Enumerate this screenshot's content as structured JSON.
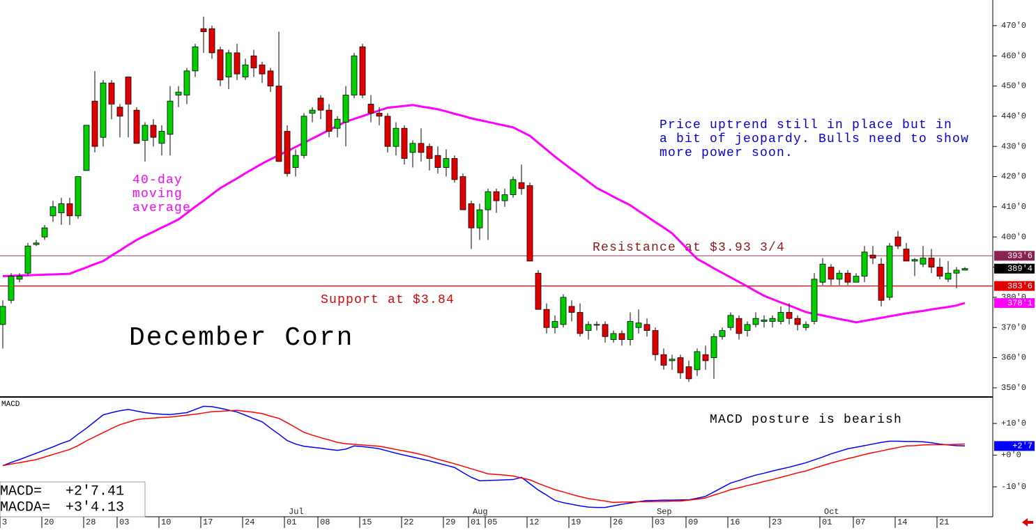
{
  "chart_data": [
    {
      "type": "candlestick",
      "title": "December Corn",
      "categories": [
        "3",
        null,
        null,
        null,
        null,
        "20",
        null,
        null,
        null,
        null,
        "28",
        null,
        null,
        null,
        "03",
        null,
        null,
        null,
        null,
        "10",
        null,
        null,
        null,
        null,
        "17",
        null,
        null,
        null,
        null,
        "24",
        null,
        null,
        null,
        null,
        "01",
        null,
        null,
        null,
        "08",
        null,
        null,
        null,
        null,
        "15",
        null,
        null,
        null,
        null,
        "22",
        null,
        null,
        null,
        null,
        "29",
        null,
        null,
        "01",
        null,
        "05",
        null,
        null,
        null,
        null,
        "12",
        null,
        null,
        null,
        null,
        "19",
        null,
        null,
        null,
        null,
        "26",
        null,
        null,
        null,
        null,
        "03",
        null,
        null,
        null,
        "09",
        null,
        null,
        null,
        null,
        "16",
        null,
        null,
        null,
        null,
        "23",
        null,
        null,
        null,
        null,
        null,
        "01",
        null,
        null,
        null,
        "07",
        null,
        null,
        null,
        null,
        "14",
        null,
        null,
        null,
        null,
        "21",
        null,
        null,
        null
      ],
      "months": [
        null,
        null,
        null,
        null,
        null,
        null,
        null,
        null,
        null,
        null,
        null,
        null,
        null,
        null,
        null,
        null,
        null,
        null,
        null,
        null,
        null,
        null,
        null,
        null,
        null,
        null,
        null,
        null,
        null,
        null,
        null,
        null,
        null,
        null,
        "Jul",
        null,
        null,
        null,
        null,
        null,
        null,
        null,
        null,
        null,
        null,
        null,
        null,
        null,
        null,
        null,
        null,
        null,
        null,
        null,
        null,
        null,
        "Aug",
        null,
        null,
        null,
        null,
        null,
        null,
        null,
        null,
        null,
        null,
        null,
        null,
        null,
        null,
        null,
        null,
        null,
        null,
        null,
        null,
        null,
        "Sep",
        null,
        null,
        null,
        null,
        null,
        null,
        null,
        null,
        null,
        null,
        null,
        null,
        null,
        null,
        null,
        null,
        null,
        null,
        null,
        "Oct",
        null,
        null,
        null,
        null,
        null,
        null,
        null,
        null,
        null,
        null,
        null,
        null,
        null,
        null,
        null,
        null,
        null
      ],
      "open": [
        371,
        379,
        386,
        388,
        397.5,
        400,
        407,
        408,
        411,
        407,
        422,
        445,
        433,
        451,
        443,
        453,
        442,
        432,
        437,
        431,
        434,
        447,
        447,
        455,
        469,
        469,
        462,
        453,
        461,
        453,
        460,
        457,
        455,
        450,
        435,
        423,
        427,
        441,
        446,
        442,
        436,
        438,
        447,
        463,
        444,
        441,
        440,
        430,
        436,
        428,
        431,
        430,
        427,
        423,
        426,
        420,
        411,
        403,
        409,
        415,
        412,
        414,
        418,
        417,
        388,
        376,
        370,
        371,
        377,
        375,
        369,
        371,
        371,
        366,
        368,
        366,
        370,
        371,
        369,
        361,
        359,
        360,
        357,
        356,
        361,
        360,
        367,
        370,
        373,
        369,
        371,
        372,
        372,
        372,
        375,
        373,
        370,
        372,
        385,
        390,
        386,
        388,
        385,
        387,
        394,
        391,
        380,
        400,
        396,
        392,
        391,
        393,
        390,
        386,
        388,
        389
      ],
      "high": [
        379,
        388,
        388,
        398,
        399,
        404,
        412,
        413,
        413,
        420,
        437,
        455,
        452,
        452,
        444,
        453,
        443,
        438,
        439,
        437,
        450,
        450,
        456,
        464,
        473,
        470,
        463,
        462,
        464,
        459,
        462,
        458,
        456,
        468,
        437,
        429,
        441,
        443,
        447,
        444,
        440,
        450,
        461,
        464,
        447,
        443,
        441,
        438,
        437,
        432,
        436,
        431,
        430,
        429,
        427,
        421,
        412,
        411,
        416,
        416,
        416,
        420,
        424,
        418,
        389,
        378,
        374,
        381,
        379,
        378,
        372,
        372,
        372,
        369,
        369,
        375,
        376,
        373,
        370,
        363,
        361,
        361,
        359,
        363,
        364,
        368,
        370,
        375,
        374,
        372,
        375,
        374,
        374,
        377,
        378,
        374,
        372,
        388,
        393,
        391,
        389,
        389,
        388,
        397,
        397,
        393,
        398,
        402,
        398,
        393,
        397,
        396,
        393,
        392,
        390,
        390
      ],
      "low": [
        363,
        378,
        385,
        387,
        397,
        399,
        405,
        404,
        404,
        406,
        422,
        428,
        430,
        439,
        433,
        433,
        431,
        425,
        430,
        427,
        427,
        443,
        444,
        453,
        461,
        459,
        450,
        449,
        452,
        452,
        453,
        451,
        448,
        425,
        420,
        420,
        426,
        438,
        439,
        433,
        433,
        430,
        446,
        446,
        438,
        437,
        428,
        427,
        424,
        423,
        425,
        422,
        421,
        420,
        418,
        409,
        396,
        399,
        399,
        408,
        410,
        413,
        414,
        392,
        376,
        368,
        368,
        370,
        372,
        367,
        366,
        369,
        365,
        365,
        364,
        364,
        368,
        367,
        359,
        356,
        356,
        353,
        352,
        354,
        356,
        353,
        366,
        369,
        366,
        367,
        370,
        370,
        370,
        371,
        371,
        369,
        369,
        371,
        384,
        384,
        384,
        384,
        385,
        385,
        391,
        377,
        379,
        396,
        392,
        387,
        390,
        388,
        386,
        385,
        383,
        389
      ],
      "close": [
        377,
        387,
        387,
        397,
        398,
        403,
        410,
        411,
        407,
        420,
        437,
        430,
        451,
        444,
        440,
        444,
        431,
        437,
        433,
        435,
        445,
        448,
        455,
        463,
        468,
        461,
        452,
        461,
        454,
        457,
        456,
        454,
        450,
        425,
        421,
        427,
        440,
        442,
        442,
        435,
        439,
        447,
        460,
        447,
        441,
        440,
        430,
        436,
        426,
        431,
        428,
        426,
        423,
        426,
        419,
        409,
        403,
        409,
        415,
        412,
        414,
        419,
        416,
        392,
        376,
        370,
        372,
        380,
        375,
        368,
        371,
        371,
        367,
        368,
        366,
        372,
        371.5,
        369,
        361,
        357.5,
        359.5,
        355,
        353,
        362,
        359,
        367,
        369,
        374,
        368,
        371,
        373,
        372.5,
        373,
        375,
        373,
        371,
        371,
        386,
        391,
        386,
        388,
        385,
        387,
        395,
        393,
        379,
        397,
        397,
        392,
        392.5,
        393,
        390,
        387,
        388,
        389,
        389.5
      ],
      "up_color": "#00d000",
      "down_color": "#e00000",
      "moving_average": {
        "label_lines": [
          "40-day",
          "moving",
          "average"
        ],
        "color": "#ff00ff",
        "values": [
          387.0,
          387.1,
          387.2,
          387.3,
          387.4,
          387.5,
          387.6,
          387.7,
          387.8,
          388.9,
          389.9,
          391.0,
          392.0,
          393.8,
          395.5,
          397.3,
          399.0,
          400.4,
          401.7,
          403.1,
          404.4,
          405.8,
          407.9,
          410.0,
          412.0,
          414.1,
          416.2,
          417.8,
          419.4,
          421.1,
          422.7,
          424.3,
          425.7,
          427.1,
          428.4,
          429.8,
          431.2,
          432.6,
          434.0,
          435.4,
          436.8,
          438.2,
          439.1,
          440.0,
          441.0,
          441.9,
          442.8,
          443.1,
          443.4,
          443.7,
          443.2,
          442.8,
          442.3,
          441.6,
          440.8,
          440.1,
          439.3,
          438.7,
          438.1,
          437.5,
          436.9,
          436.3,
          434.9,
          433.5,
          431.2,
          428.9,
          426.6,
          424.5,
          422.4,
          420.4,
          418.3,
          416.2,
          414.8,
          413.3,
          411.9,
          410.5,
          408.6,
          406.8,
          404.9,
          403.1,
          401.2,
          398.4,
          395.5,
          392.7,
          391.2,
          389.6,
          388.1,
          386.6,
          385.1,
          383.6,
          382.0,
          380.5,
          379.4,
          378.3,
          377.3,
          376.2,
          375.1,
          374.5,
          374.0,
          373.4,
          372.8,
          372.3,
          371.7,
          372.2,
          372.7,
          373.2,
          373.7,
          374.2,
          374.7,
          375.1,
          375.5,
          376.0,
          376.4,
          376.8,
          377.3,
          378.1
        ],
        "tag": {
          "value": 378.1,
          "label": "378'1"
        }
      },
      "levels": [
        {
          "label": "Resistance at $3.93 3/4",
          "value": 393.75,
          "tag": "393'6",
          "color": "#9b4f7a",
          "text_color": "#8b1a1a",
          "tag_color": "#8b2252"
        },
        {
          "label": "Support at $3.84",
          "value": 383.75,
          "tag": "383'6",
          "color": "#e00000",
          "text_color": "#e00000",
          "tag_color": "#e00000"
        }
      ],
      "last_tag": {
        "value": 389.5,
        "label": "389'4"
      },
      "note_lines": [
        "Price uptrend still in place but in",
        "a bit of jeopardy. Bulls need to show",
        "more power soon."
      ],
      "ylim": [
        347.9,
        478.5
      ],
      "yticks": [
        {
          "value": 350,
          "label": "350'0"
        },
        {
          "value": 360,
          "label": "360'0"
        },
        {
          "value": 370,
          "label": "370'0"
        },
        {
          "value": 380,
          "label": "380'0"
        },
        {
          "value": 390,
          "label": "390'0"
        },
        {
          "value": 400,
          "label": "400'0"
        },
        {
          "value": 410,
          "label": "410'0"
        },
        {
          "value": 420,
          "label": "420'0"
        },
        {
          "value": 430,
          "label": "430'0"
        },
        {
          "value": 440,
          "label": "440'0"
        },
        {
          "value": 450,
          "label": "450'0"
        },
        {
          "value": 460,
          "label": "460'0"
        },
        {
          "value": 470,
          "label": "470'0"
        }
      ]
    },
    {
      "type": "line",
      "title": "MACD",
      "annotation": "MACD posture is bearish",
      "series": [
        {
          "name": "MACD=",
          "value_label": "+2'7.41",
          "color": "#0000ff",
          "values": [
            -3.3,
            -2.3,
            -1.4,
            -0.4,
            0.6,
            1.6,
            2.6,
            3.7,
            4.6,
            6.6,
            8.5,
            10.6,
            12.7,
            13.4,
            14.0,
            14.4,
            13.9,
            13.4,
            13.1,
            12.9,
            12.8,
            13.1,
            13.4,
            14.4,
            15.4,
            15.3,
            14.8,
            14.2,
            13.6,
            12.6,
            11.5,
            10.5,
            8.5,
            6.6,
            4.6,
            3.5,
            2.8,
            2.5,
            2.2,
            1.8,
            1.5,
            1.9,
            2.9,
            2.7,
            2.4,
            2.0,
            1.3,
            0.6,
            0,
            -0.6,
            -1.2,
            -1.8,
            -2.5,
            -3.2,
            -3.9,
            -5.5,
            -7.0,
            -8.1,
            -8.0,
            -7.9,
            -7.8,
            -7.7,
            -7.0,
            -9.0,
            -11,
            -12.6,
            -14.3,
            -15.0,
            -15.5,
            -16.0,
            -16.4,
            -16.5,
            -16.5,
            -16.0,
            -15.5,
            -15.1,
            -14.7,
            -14.3,
            -14.3,
            -14.2,
            -14.2,
            -14.1,
            -14.1,
            -13.6,
            -13.0,
            -11.6,
            -10.2,
            -8.8,
            -8.0,
            -7.1,
            -6.3,
            -5.7,
            -5.0,
            -4.4,
            -3.8,
            -3.1,
            -2.4,
            -1.5,
            -0.6,
            0.4,
            1.2,
            2.0,
            2.5,
            3.0,
            3.5,
            4.0,
            4.4,
            4.4,
            4.3,
            4.3,
            4.2,
            3.9,
            3.5,
            3.2,
            3.0,
            2.9
          ]
        },
        {
          "name": "MACDA=",
          "value_label": "+3'4.13",
          "color": "#ff0000",
          "values": [
            -3.3,
            -2.8,
            -2.4,
            -1.9,
            -1.4,
            -0.6,
            0.2,
            1.0,
            1.8,
            3.0,
            4.5,
            5.8,
            7.1,
            8.4,
            9.6,
            10.4,
            11.2,
            11.5,
            11.7,
            11.9,
            12.0,
            12.3,
            12.6,
            12.9,
            13.3,
            13.7,
            13.8,
            14.0,
            14.1,
            13.8,
            13.5,
            13.1,
            12.3,
            11.6,
            10.2,
            8.7,
            7.2,
            6.3,
            5.5,
            4.8,
            4.0,
            3.6,
            3.4,
            3.2,
            3.0,
            2.8,
            2.3,
            1.8,
            1.3,
            0.8,
            0.2,
            -0.5,
            -1.3,
            -2.0,
            -2.7,
            -3.5,
            -4.3,
            -5.1,
            -5.9,
            -6.1,
            -6.3,
            -6.6,
            -7.2,
            -7.8,
            -8.9,
            -9.9,
            -10.9,
            -11.6,
            -12.4,
            -13.1,
            -13.7,
            -14.1,
            -14.5,
            -14.9,
            -14.8,
            -14.8,
            -14.7,
            -14.7,
            -14.6,
            -14.6,
            -14.5,
            -14.5,
            -14.2,
            -13.9,
            -13.5,
            -12.6,
            -11.8,
            -10.9,
            -10.3,
            -9.6,
            -9.0,
            -8.3,
            -7.7,
            -7.0,
            -6.3,
            -5.6,
            -5.0,
            -4.1,
            -3.3,
            -2.5,
            -1.8,
            -1.1,
            -0.5,
            0.2,
            0.8,
            1.3,
            1.9,
            2.4,
            2.9,
            3.0,
            3.2,
            3.3,
            3.3,
            3.3,
            3.4,
            3.5
          ]
        }
      ],
      "last_tag": {
        "value": 2.875,
        "label": "+2'7"
      },
      "ylim": [
        -19,
        17.9
      ],
      "yticks": [
        {
          "value": 10,
          "label": "+10'0"
        },
        {
          "value": 0,
          "label": "+0'0"
        },
        {
          "value": -10,
          "label": "-10'0"
        }
      ]
    }
  ]
}
